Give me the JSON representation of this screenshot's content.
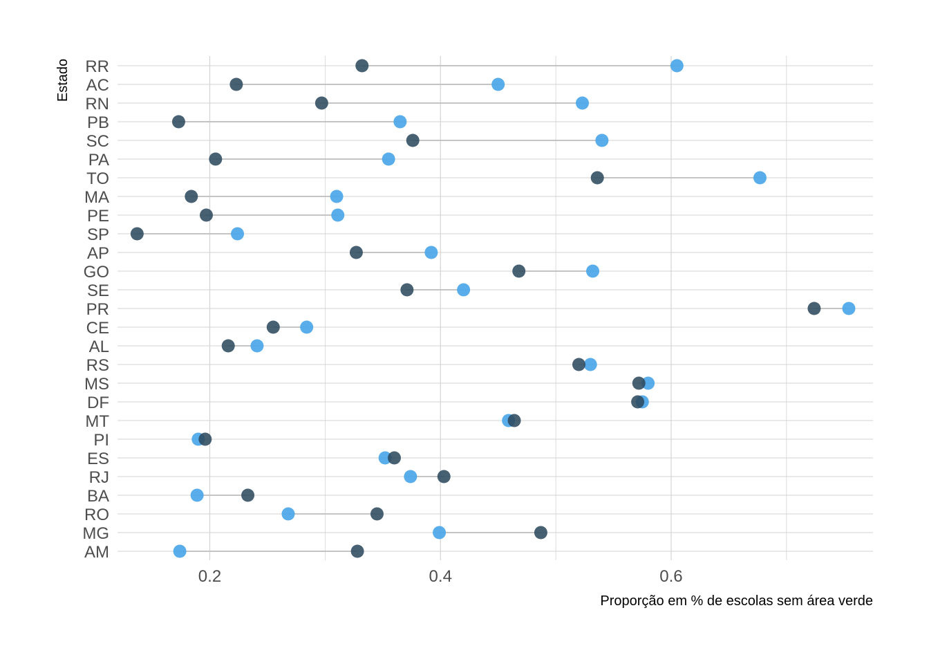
{
  "chart_data": {
    "type": "dumbbell",
    "xlabel": "Proporção em % de escolas sem área verde",
    "ylabel": "Estado",
    "xlim": [
      0.12,
      0.775
    ],
    "xticks": [
      0.2,
      0.4,
      0.6
    ],
    "xtick_labels": [
      "0.2",
      "0.4",
      "0.6"
    ],
    "grid": true,
    "colors": {
      "dark": "#2e4a5e",
      "light": "#4aa6e8",
      "segment": "#c4c4c4",
      "grid": "#d3d3d3"
    },
    "categories": [
      "RR",
      "AC",
      "RN",
      "PB",
      "SC",
      "PA",
      "TO",
      "MA",
      "PE",
      "SP",
      "AP",
      "GO",
      "SE",
      "PR",
      "CE",
      "AL",
      "RS",
      "MS",
      "DF",
      "MT",
      "PI",
      "ES",
      "RJ",
      "BA",
      "RO",
      "MG",
      "AM"
    ],
    "series": [
      {
        "values": [
          0.332,
          0.223,
          0.297,
          0.173,
          0.376,
          0.205,
          0.536,
          0.184,
          0.197,
          0.137,
          0.327,
          0.468,
          0.371,
          0.724,
          0.255,
          0.216,
          0.52,
          0.572,
          0.571,
          0.464,
          0.196,
          0.36,
          0.403,
          0.233,
          0.345,
          0.487,
          0.328
        ]
      },
      {
        "values": [
          0.605,
          0.45,
          0.523,
          0.365,
          0.54,
          0.355,
          0.677,
          0.31,
          0.311,
          0.224,
          0.392,
          0.532,
          0.42,
          0.754,
          0.284,
          0.241,
          0.53,
          0.58,
          0.575,
          0.459,
          0.19,
          0.352,
          0.374,
          0.189,
          0.268,
          0.399,
          0.174
        ]
      }
    ]
  }
}
